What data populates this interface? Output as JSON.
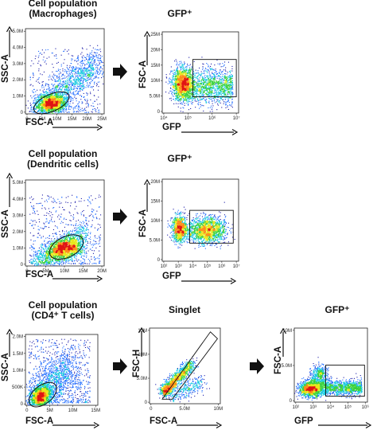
{
  "colors": {
    "scale": [
      "#1a1aa8",
      "#1f6bff",
      "#15c8e0",
      "#3ad13a",
      "#e8e81a",
      "#ff8c1a",
      "#e01414"
    ],
    "ink": "#111111"
  },
  "icons": {
    "arrow": "right-block-arrow"
  },
  "chart_data": [
    {
      "id": "p1",
      "type": "scatter",
      "title": [
        "Cell population",
        "(Macrophages)"
      ],
      "xlabel": "FSC-A",
      "ylabel": "SSC-A",
      "xticks": [
        "0",
        "5M",
        "10M",
        "15M",
        "20M",
        "25M"
      ],
      "yticks": [
        "0",
        "1.0M",
        "2.0M",
        "3.0M",
        "4.0M",
        "5.0M"
      ],
      "xlim": [
        0,
        25000000
      ],
      "ylim": [
        0,
        5000000
      ],
      "population": {
        "center": [
          7000000,
          600000
        ],
        "spread": "diagonal tail toward upper right",
        "gate": "ellipse"
      }
    },
    {
      "id": "p2",
      "type": "scatter",
      "title": [
        "GFP⁺"
      ],
      "xlabel": "GFP",
      "ylabel": "FSC-A",
      "xticks": [
        "10⁴",
        "10⁵",
        "10⁶",
        "10⁷"
      ],
      "yticks": [
        "0",
        "5.0M",
        "10M",
        "15M",
        "20M",
        "25M"
      ],
      "xscale": "log",
      "population": {
        "center": [
          "10^4.4",
          7500000
        ],
        "gate": "rectangle",
        "gate_x": [
          "10^4.7",
          "10^7"
        ],
        "gate_y": [
          2000000,
          14000000
        ]
      }
    },
    {
      "id": "p3",
      "type": "scatter",
      "title": [
        "Cell population",
        "(Dendritic cells)"
      ],
      "xlabel": "FSC-A",
      "ylabel": "SSC-A",
      "xticks": [
        "0",
        "5M",
        "10M",
        "15M",
        "20M"
      ],
      "yticks": [
        "0",
        "1.0M",
        "2.0M",
        "3.0M",
        "4.0M",
        "5.0M"
      ],
      "xlim": [
        0,
        20000000
      ],
      "ylim": [
        0,
        5000000
      ],
      "population": {
        "center": [
          10000000,
          1200000
        ],
        "gate": "ellipse"
      }
    },
    {
      "id": "p4",
      "type": "scatter",
      "title": [
        "GFP⁺"
      ],
      "xlabel": "GFP",
      "ylabel": "FSC-A",
      "xticks": [
        "10²",
        "10³",
        "10⁴",
        "10⁵",
        "10⁶",
        "10⁷"
      ],
      "yticks": [
        "0",
        "5.0M",
        "10M",
        "15M",
        "20M"
      ],
      "xscale": "log",
      "population": {
        "clusters": [
          [
            "10^3.2",
            7000000
          ],
          [
            "10^5",
            6500000
          ]
        ],
        "gate": "rectangle",
        "gate_x": [
          "10^4.5",
          "10^6.8"
        ],
        "gate_y": [
          2000000,
          12000000
        ]
      }
    },
    {
      "id": "p5",
      "type": "scatter",
      "title": [
        "Cell population",
        "(CD4⁺ T cells)"
      ],
      "xlabel": "FSC-A",
      "ylabel": "SSC-A",
      "xticks": [
        "0",
        "5M",
        "10M",
        "15M"
      ],
      "yticks": [
        "0",
        "500K",
        "1.0M",
        "1.5M",
        "2.0M"
      ],
      "xlim": [
        0,
        15000000
      ],
      "ylim": [
        0,
        2000000
      ],
      "population": {
        "center": [
          2000000,
          150000
        ],
        "gate": "ellipse"
      }
    },
    {
      "id": "p6",
      "type": "scatter",
      "title": [
        "Singlet"
      ],
      "xlabel": "FSC-A",
      "ylabel": "FSC-H",
      "xticks": [
        "0",
        "5.0M",
        "10M"
      ],
      "yticks": [
        "0",
        "5.0M",
        "10M",
        "15M"
      ],
      "population": {
        "along": "diagonal",
        "gate": "diagonal band"
      }
    },
    {
      "id": "p7",
      "type": "scatter",
      "title": [
        "GFP⁺"
      ],
      "xlabel": "GFP",
      "ylabel": "FSC-A",
      "xticks": [
        "10²",
        "10³",
        "10⁴",
        "10⁵",
        "10⁶"
      ],
      "yticks": [
        "0",
        "5.0M",
        "10M"
      ],
      "xscale": "log",
      "population": {
        "center": [
          "10^3.5",
          2000000
        ],
        "gate": "rectangle",
        "gate_x": [
          "10^4",
          "10^6"
        ],
        "gate_y": [
          1000000,
          6000000
        ]
      }
    }
  ]
}
